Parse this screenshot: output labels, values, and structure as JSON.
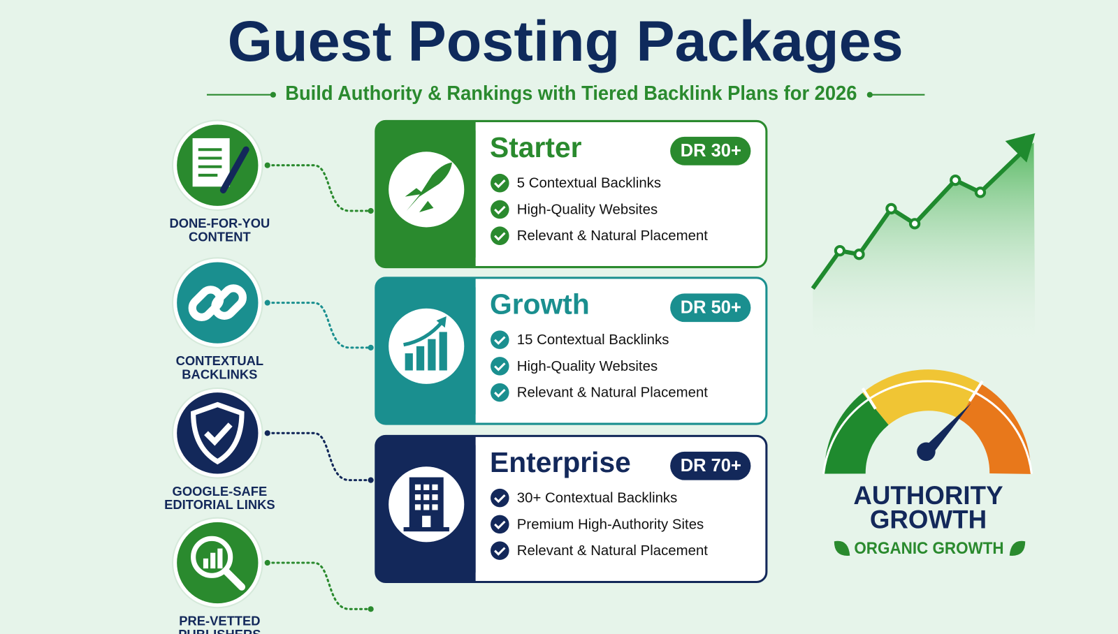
{
  "header": {
    "title": "Guest Posting Packages",
    "subtitle": "Build Authority & Rankings with Tiered Backlink Plans for 2026"
  },
  "features": [
    {
      "lines": [
        "DONE-FOR-YOU",
        "CONTENT"
      ]
    },
    {
      "lines": [
        "CONTEXTUAL",
        "BACKLINKS"
      ]
    },
    {
      "lines": [
        "GOOGLE-SAFE",
        "EDITORIAL LINKS"
      ]
    },
    {
      "lines": [
        "PRE-VETTED",
        "PUBLISHERS"
      ]
    }
  ],
  "packages": [
    {
      "name": "Starter",
      "badge": "DR 30+",
      "items": [
        "5 Contextual Backlinks",
        "High-Quality Websites",
        "Relevant & Natural Placement"
      ]
    },
    {
      "name": "Growth",
      "badge": "DR 50+",
      "items": [
        "15 Contextual Backlinks",
        "High-Quality Websites",
        "Relevant & Natural Placement"
      ]
    },
    {
      "name": "Enterprise",
      "badge": "DR 70+",
      "items": [
        "30+ Contextual Backlinks",
        "Premium High-Authority Sites",
        "Relevant & Natural Placement"
      ]
    }
  ],
  "gauge": {
    "title_lines": [
      "AUTHORITY",
      "GROWTH"
    ],
    "caption": "ORGANIC GROWTH"
  }
}
